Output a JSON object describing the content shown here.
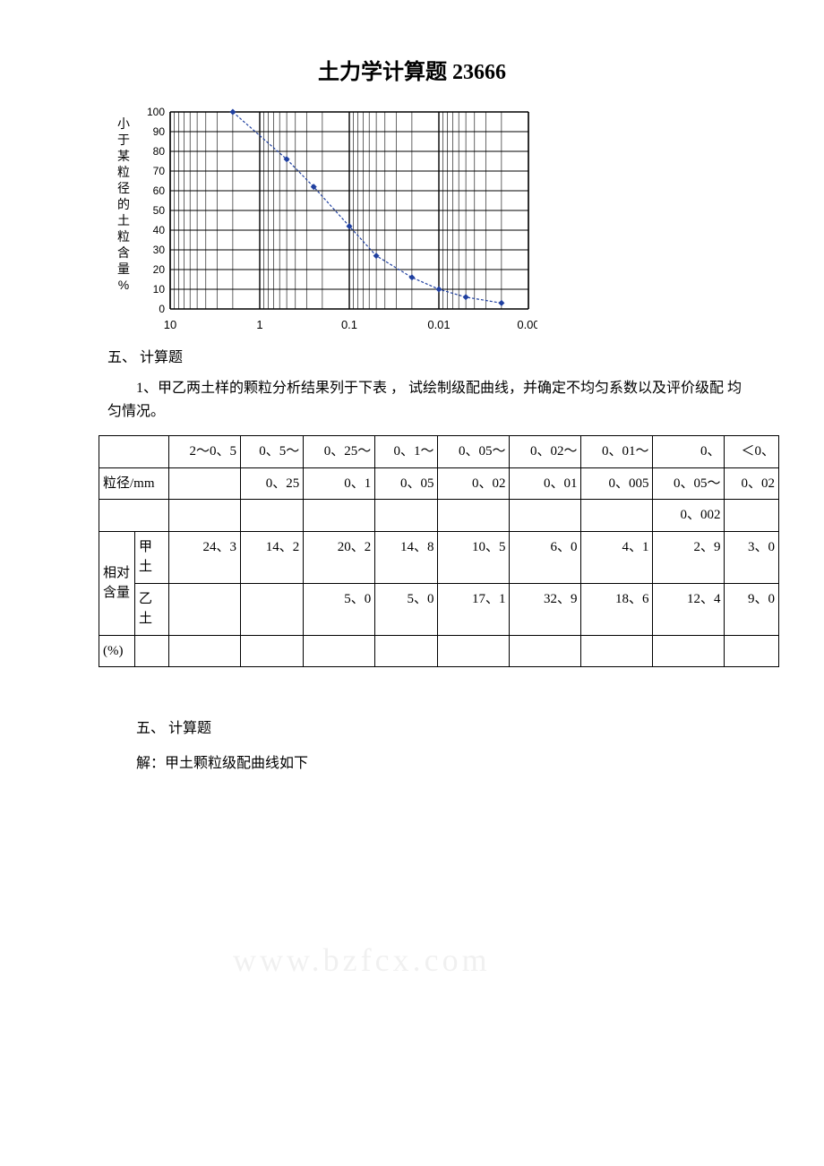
{
  "title": "土力学计算题 23666",
  "chart": {
    "type": "line",
    "xaxis": {
      "scale": "log_reversed",
      "ticks": [
        10,
        1,
        0.1,
        0.01,
        0.001
      ],
      "tick_labels": [
        "10",
        "1",
        "0.1",
        "0.01",
        "0.00"
      ]
    },
    "yaxis": {
      "label_vertical": "小于某粒径的土粒含量%",
      "ylim": [
        0,
        100
      ],
      "ytick_step": 10,
      "tick_labels": [
        "0",
        "10",
        "20",
        "30",
        "40",
        "50",
        "60",
        "70",
        "80",
        "90",
        "100"
      ]
    },
    "grid_color": "#000000",
    "background": "#ffffff",
    "line_color": "#2040a0",
    "marker_color": "#2040a0",
    "marker_type": "diamond",
    "points": [
      {
        "x": 2,
        "y": 100
      },
      {
        "x": 0.5,
        "y": 76
      },
      {
        "x": 0.25,
        "y": 62
      },
      {
        "x": 0.1,
        "y": 42
      },
      {
        "x": 0.05,
        "y": 27
      },
      {
        "x": 0.02,
        "y": 16
      },
      {
        "x": 0.01,
        "y": 10
      },
      {
        "x": 0.005,
        "y": 6
      },
      {
        "x": 0.002,
        "y": 3
      }
    ]
  },
  "section_heading": "五、 计算题",
  "question_text": "1、甲乙两土样的颗粒分析结果列于下表 ， 试绘制级配曲线，并确定不均匀系数以及评价级配 均匀情况。",
  "table": {
    "row1": [
      "",
      "2～0、5",
      "0、5～",
      "0、25～",
      "0、1～",
      "0、05～",
      "0、02～",
      "0、01～",
      "0、",
      "＜0、"
    ],
    "row2": [
      "粒径/mm",
      "",
      "0、25",
      "0、1",
      "0、05",
      "0、02",
      "0、01",
      "0、005",
      "0、05～",
      "0、02"
    ],
    "row3": [
      "",
      "",
      "",
      "",
      "",
      "",
      "",
      "",
      "0、002",
      ""
    ],
    "row4_left1": "相对含量",
    "row4_left2": "甲土",
    "row4": [
      "24、3",
      "14、2",
      "20、2",
      "14、8",
      "10、5",
      "6、0",
      "4、1",
      "2、9",
      "3、0"
    ],
    "row5_left": "(%)",
    "row5_left2": "乙土",
    "row5": [
      "",
      "",
      "5、0",
      "5、0",
      "17、1",
      "32、9",
      "18、6",
      "12、4",
      "9、0"
    ]
  },
  "footer": {
    "line1": "五、 计算题",
    "line2": "解：甲土颗粒级配曲线如下"
  },
  "watermark": "www.bzfcx.com"
}
